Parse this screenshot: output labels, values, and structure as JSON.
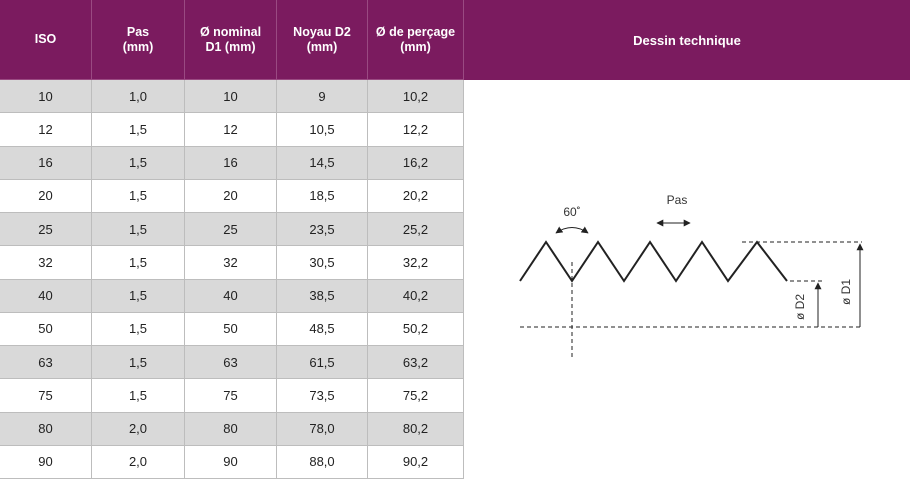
{
  "table": {
    "headers": [
      "ISO",
      "Pas\n(mm)",
      "Ø nominal\nD1 (mm)",
      "Noyau D2\n(mm)",
      "Ø de perçage\n(mm)"
    ],
    "rows": [
      [
        "10",
        "1,0",
        "10",
        "9",
        "10,2"
      ],
      [
        "12",
        "1,5",
        "12",
        "10,5",
        "12,2"
      ],
      [
        "16",
        "1,5",
        "16",
        "14,5",
        "16,2"
      ],
      [
        "20",
        "1,5",
        "20",
        "18,5",
        "20,2"
      ],
      [
        "25",
        "1,5",
        "25",
        "23,5",
        "25,2"
      ],
      [
        "32",
        "1,5",
        "32",
        "30,5",
        "32,2"
      ],
      [
        "40",
        "1,5",
        "40",
        "38,5",
        "40,2"
      ],
      [
        "50",
        "1,5",
        "50",
        "48,5",
        "50,2"
      ],
      [
        "63",
        "1,5",
        "63",
        "61,5",
        "63,2"
      ],
      [
        "75",
        "1,5",
        "75",
        "73,5",
        "75,2"
      ],
      [
        "80",
        "2,0",
        "80",
        "78,0",
        "80,2"
      ],
      [
        "90",
        "2,0",
        "90",
        "88,0",
        "90,2"
      ]
    ]
  },
  "drawing": {
    "title": "Dessin technique",
    "angle": "60˚",
    "pitch": "Pas",
    "d2": "ø D2",
    "d1": "ø D1"
  }
}
